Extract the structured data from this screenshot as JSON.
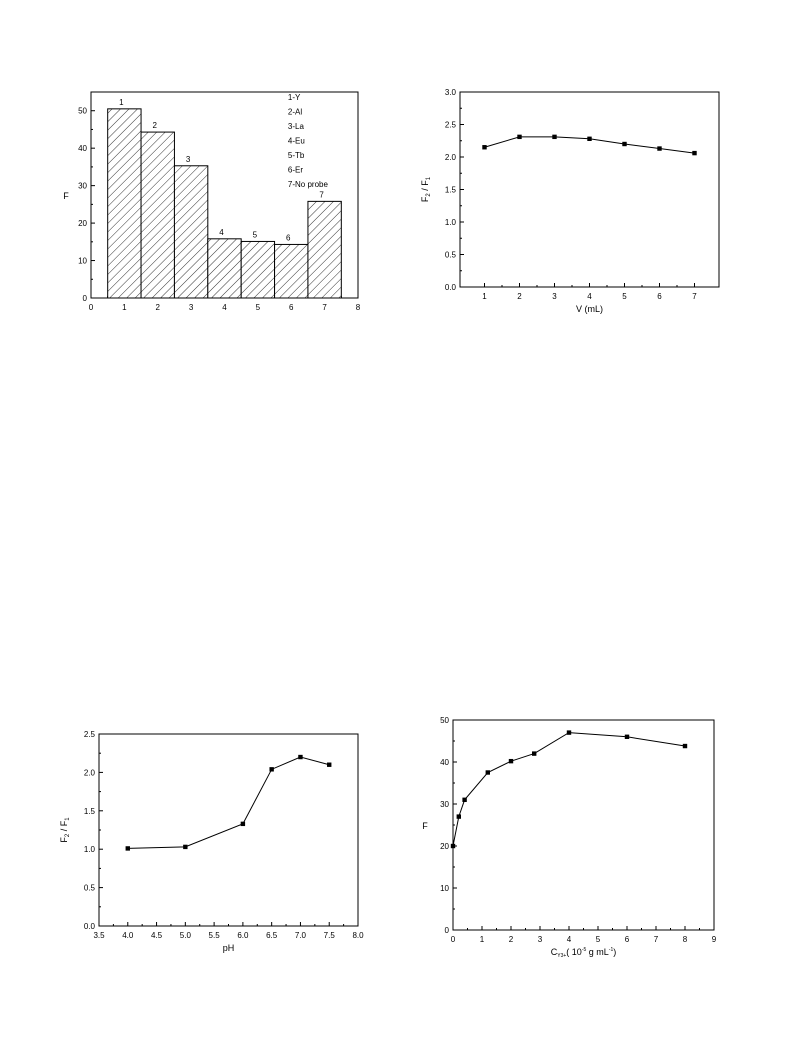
{
  "chart_data": [
    {
      "id": "c1",
      "type": "bar",
      "categories": [
        "1",
        "2",
        "3",
        "4",
        "5",
        "6",
        "7"
      ],
      "x": [
        1,
        2,
        3,
        4,
        5,
        6,
        7
      ],
      "values": [
        50.5,
        44.3,
        35.3,
        15.8,
        15.1,
        14.3,
        25.8
      ],
      "bar_labels": [
        "1",
        "2",
        "3",
        "4",
        "5",
        "6",
        "7"
      ],
      "ylabel": "F",
      "xlim": [
        0,
        8
      ],
      "ylim": [
        0,
        55
      ],
      "xticks": [
        0,
        1,
        2,
        3,
        4,
        5,
        6,
        7,
        8
      ],
      "yticks": [
        0,
        10,
        20,
        30,
        40,
        50
      ],
      "legend": [
        "1-Y",
        "2-Al",
        "3-La",
        "4-Eu",
        "5-Tb",
        "6-Er",
        "7-No probe"
      ],
      "legend_placement": "top-right",
      "fill": "diagonal-hatch"
    },
    {
      "id": "c2",
      "type": "line",
      "x": [
        1,
        2,
        3,
        4,
        5,
        6,
        7
      ],
      "y": [
        2.15,
        2.31,
        2.31,
        2.28,
        2.2,
        2.13,
        2.06
      ],
      "xlabel": "V (mL)",
      "ylabel": "F2 / F1",
      "ylabel_parts": {
        "a": "F",
        "a_sub": "2",
        "sep": " / ",
        "b": "F",
        "b_sub": "1"
      },
      "xlim": [
        0.3,
        7.7
      ],
      "ylim": [
        0,
        3.0
      ],
      "xticks": [
        1,
        2,
        3,
        4,
        5,
        6,
        7
      ],
      "yticks": [
        0.0,
        0.5,
        1.0,
        1.5,
        2.0,
        2.5,
        3.0
      ],
      "ytick_labels": [
        "0.0",
        "0.5",
        "1.0",
        "1.5",
        "2.0",
        "2.5",
        "3.0"
      ]
    },
    {
      "id": "c3",
      "type": "line",
      "x": [
        4.0,
        5.0,
        6.0,
        6.5,
        7.0,
        7.5
      ],
      "y": [
        1.01,
        1.03,
        1.33,
        2.04,
        2.2,
        2.1
      ],
      "xlabel": "pH",
      "ylabel": "F2 / F1",
      "ylabel_parts": {
        "a": "F",
        "a_sub": "2",
        "sep": " / ",
        "b": "F",
        "b_sub": "1"
      },
      "xlim": [
        3.5,
        8.0
      ],
      "ylim": [
        0,
        2.5
      ],
      "xticks": [
        3.5,
        4.0,
        4.5,
        5.0,
        5.5,
        6.0,
        6.5,
        7.0,
        7.5,
        8.0
      ],
      "xtick_labels": [
        "3.5",
        "4.0",
        "4.5",
        "5.0",
        "5.5",
        "6.0",
        "6.5",
        "7.0",
        "7.5",
        "8.0"
      ],
      "yticks": [
        0.0,
        0.5,
        1.0,
        1.5,
        2.0,
        2.5
      ],
      "ytick_labels": [
        "0.0",
        "0.5",
        "1.0",
        "1.5",
        "2.0",
        "2.5"
      ]
    },
    {
      "id": "c4",
      "type": "line",
      "x": [
        0,
        0.2,
        0.4,
        1.2,
        2.0,
        2.8,
        4.0,
        6.0,
        8.0
      ],
      "y": [
        20.0,
        27.0,
        31.0,
        37.5,
        40.2,
        42.0,
        47.0,
        46.0,
        43.8
      ],
      "ylabel": "F",
      "xlabel_parts": {
        "pre": "C",
        "sub": "Y3+",
        "mid": "( 10",
        "sup": "-5",
        "post": " g mL",
        "sup2": "-1",
        "end": ")"
      },
      "xlim": [
        0,
        9
      ],
      "ylim": [
        0,
        50
      ],
      "xticks": [
        0,
        1,
        2,
        3,
        4,
        5,
        6,
        7,
        8,
        9
      ],
      "yticks": [
        0,
        10,
        20,
        30,
        40,
        50
      ]
    }
  ]
}
